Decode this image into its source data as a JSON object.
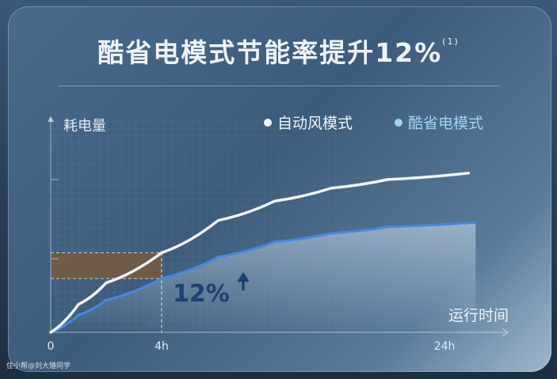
{
  "title": "酷省电模式节能率提升12%",
  "title_footnote": "(1)",
  "watermark": "住小帮@刘大锤同学",
  "chart_data": {
    "type": "line",
    "ylabel": "耗电量",
    "xlabel": "运行时间",
    "x_ticks": [
      {
        "value": 0,
        "label": "0"
      },
      {
        "value": 4,
        "label": "4h"
      },
      {
        "value": 24,
        "label": "24h"
      }
    ],
    "ylim": [
      0,
      100
    ],
    "grid": true,
    "legend_position": "top-right",
    "series": [
      {
        "name": "自动风模式",
        "color": "#f2f4f7",
        "x": [
          0,
          1,
          2,
          4,
          8,
          12,
          16,
          20,
          25.7
        ],
        "y": [
          0,
          13,
          23,
          37,
          52,
          61,
          67,
          71,
          74
        ]
      },
      {
        "name": "酷省电模式",
        "color": "#4a86e0",
        "x": [
          0,
          1,
          2,
          4,
          8,
          12,
          16,
          20,
          26.2
        ],
        "y": [
          0,
          8,
          15,
          25,
          35,
          42,
          46,
          49,
          51
        ]
      }
    ],
    "annotation": {
      "text": "12%",
      "icon": "arrow-up-icon",
      "at_x": 4
    },
    "highlight_band_color": "#7a5a3a"
  }
}
